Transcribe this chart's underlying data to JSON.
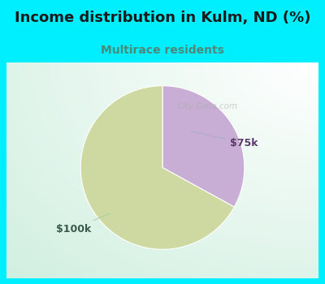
{
  "title": "Income distribution in Kulm, ND (%)",
  "subtitle": "Multirace residents",
  "slices": [
    {
      "label": "$75k",
      "value": 33,
      "color": "#c8aed4"
    },
    {
      "label": "$100k",
      "value": 67,
      "color": "#cdd9a0"
    }
  ],
  "title_fontsize": 13,
  "subtitle_fontsize": 10,
  "background_color": "#00efff",
  "title_color": "#1a1a1a",
  "subtitle_color": "#4a8a7a",
  "label_75k_color": "#5a3a6a",
  "label_100k_color": "#3a5a4a",
  "watermark": "City-Data.com",
  "start_angle": 90
}
